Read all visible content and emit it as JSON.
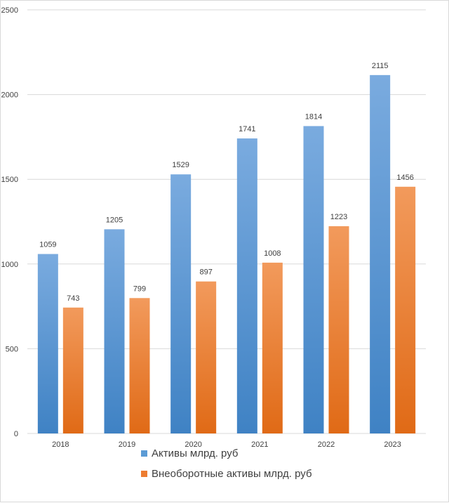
{
  "chart_data": {
    "type": "bar",
    "categories": [
      "2018",
      "2019",
      "2020",
      "2021",
      "2022",
      "2023"
    ],
    "series": [
      {
        "name": "Активы млрд. руб",
        "values": [
          1059,
          1205,
          1529,
          1741,
          1814,
          2115
        ],
        "color": "#5b9bd5",
        "color_light": "#7aabdf",
        "color_dark": "#3f82c4"
      },
      {
        "name": "Внеоборотные активы млрд. руб",
        "values": [
          743,
          799,
          897,
          1008,
          1223,
          1456
        ],
        "color": "#ed7d31",
        "color_light": "#f29a5c",
        "color_dark": "#e06a16"
      }
    ],
    "yticks": [
      "0",
      "500",
      "1000",
      "1500",
      "2000",
      "2500"
    ],
    "ylim": [
      0,
      2500
    ],
    "grid": true,
    "legend_position": "bottom",
    "data_labels": true
  }
}
